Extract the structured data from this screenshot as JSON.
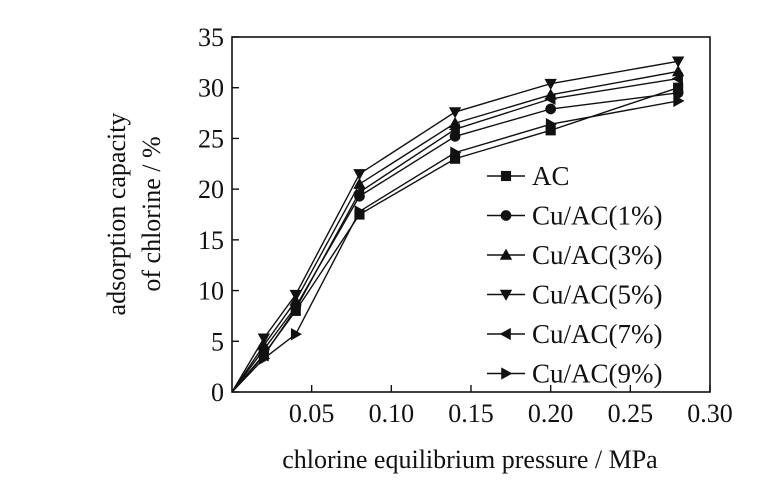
{
  "chart_data": {
    "type": "line",
    "title": "",
    "xlabel": "chlorine equilibrium pressure / MPa",
    "ylabel_line1": "adsorption capacity",
    "ylabel_line2": "of chlorine / %",
    "xlim": [
      0,
      0.3
    ],
    "ylim": [
      0,
      35
    ],
    "x_ticks": [
      "0.05",
      "0.10",
      "0.15",
      "0.20",
      "0.25",
      "0.30"
    ],
    "x_tick_values": [
      0.05,
      0.1,
      0.15,
      0.2,
      0.25,
      0.3
    ],
    "y_ticks": [
      "0",
      "5",
      "10",
      "15",
      "20",
      "25",
      "30",
      "35"
    ],
    "y_tick_values": [
      0,
      5,
      10,
      15,
      20,
      25,
      30,
      35
    ],
    "grid": false,
    "legend_position": "right",
    "x": [
      0,
      0.02,
      0.04,
      0.08,
      0.14,
      0.2,
      0.28
    ],
    "series": [
      {
        "name": "AC",
        "marker": "square",
        "values": [
          0,
          3.7,
          8.0,
          17.5,
          23.0,
          25.8,
          30.0
        ]
      },
      {
        "name": "Cu/AC(1%)",
        "marker": "circle",
        "values": [
          0,
          4.2,
          8.4,
          19.3,
          25.2,
          27.9,
          29.5
        ]
      },
      {
        "name": "Cu/AC(3%)",
        "marker": "triangle-up",
        "values": [
          0,
          4.6,
          9.0,
          20.5,
          26.5,
          29.3,
          31.6
        ]
      },
      {
        "name": "Cu/AC(5%)",
        "marker": "triangle-down",
        "values": [
          0,
          5.3,
          9.6,
          21.5,
          27.6,
          30.4,
          32.6
        ]
      },
      {
        "name": "Cu/AC(7%)",
        "marker": "triangle-left",
        "values": [
          0,
          3.6,
          8.2,
          19.7,
          25.9,
          28.9,
          30.9
        ]
      },
      {
        "name": "Cu/AC(9%)",
        "marker": "triangle-right",
        "values": [
          0,
          3.3,
          5.7,
          17.8,
          23.6,
          26.4,
          28.7
        ]
      }
    ]
  }
}
